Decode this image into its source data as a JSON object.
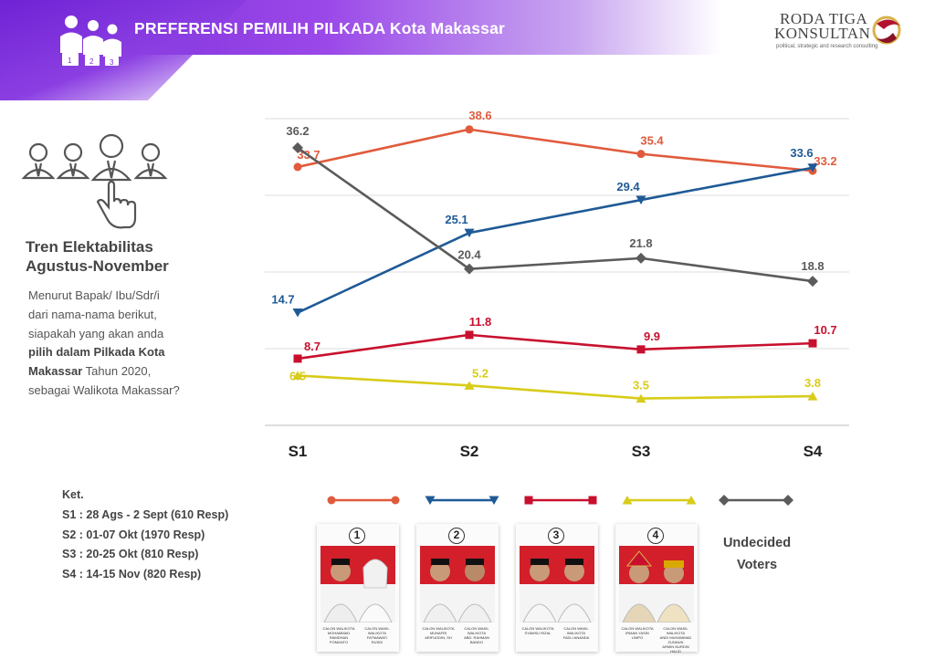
{
  "header": {
    "title": "PREFERENSI PEMILIH PILKADA Kota Makassar"
  },
  "brand": {
    "line1": "RODA TIGA",
    "line2": "KONSULTAN",
    "tagline": "political, strategic and research consulting"
  },
  "sidebar": {
    "trend_title_1": "Tren Elektabilitas",
    "trend_title_2": "Agustus-November",
    "question_1": "Menurut Bapak/ Ibu/Sdr/i",
    "question_2": "dari nama-nama berikut,",
    "question_3": "siapakah yang akan anda",
    "question_4_bold": "pilih dalam Pilkada Kota",
    "question_5_bold": "Makassar",
    "question_5_rest": " Tahun 2020,",
    "question_6": "sebagai Walikota Makassar?"
  },
  "ket": {
    "title": "Ket.",
    "items": [
      "S1 : 28 Ags - 2 Sept (610 Resp)",
      "S2 : 01-07 Okt (1970 Resp)",
      "S3 : 20-25 Okt (810 Resp)",
      "S4 : 14-15 Nov (820 Resp)"
    ]
  },
  "candidates": [
    {
      "number": "1",
      "left_caption": "CALON WALIKOTA\nMOHAMMAD RAMDHAN\nPOMANTO",
      "right_caption": "CALON WAKIL WALIKOTA\nFATMAWATI\nRUSDI"
    },
    {
      "number": "2",
      "left_caption": "CALON WALIKOTA\nMUNAFRI\nARIFUDDIN, SH",
      "right_caption": "CALON WAKIL WALIKOTA\nABD. RAHMAN\nBANDO"
    },
    {
      "number": "3",
      "left_caption": "CALON WALIKOTA\nSYAMSU RIZAL",
      "right_caption": "CALON WAKIL WALIKOTA\nFADLI ANANDA"
    },
    {
      "number": "4",
      "left_caption": "CALON WALIKOTA\nIRMAN YASIN\nLIMPO",
      "right_caption": "CALON WAKIL WALIKOTA\nANDI MUHAMMAD ZUNNUN\nARMIN NURDIN HALID"
    }
  ],
  "undecided_label_1": "Undecided",
  "undecided_label_2": "Voters",
  "chart_data": {
    "type": "line",
    "categories": [
      "S1",
      "S2",
      "S3",
      "S4"
    ],
    "ylim": [
      0,
      40
    ],
    "grid": true,
    "series": [
      {
        "values": [
          33.7,
          38.6,
          35.4,
          33.2
        ],
        "color": "#e05b3c",
        "marker": "circle",
        "labels": [
          "33.7",
          "38.6",
          "35.4",
          "33.2"
        ]
      },
      {
        "values": [
          14.7,
          25.1,
          29.4,
          33.6
        ],
        "color": "#1f5a96",
        "marker": "triangle-down",
        "labels": [
          "14.7",
          "25.1",
          "29.4",
          "33.6"
        ]
      },
      {
        "values": [
          8.7,
          11.8,
          9.9,
          10.7
        ],
        "color": "#c8102e",
        "marker": "square",
        "labels": [
          "8.7",
          "11.8",
          "9.9",
          "10.7"
        ]
      },
      {
        "values": [
          6.5,
          5.2,
          3.5,
          3.8
        ],
        "color": "#d8cc1a",
        "marker": "triangle-up",
        "labels": [
          "6.5",
          "5.2",
          "3.5",
          "3.8"
        ]
      },
      {
        "values": [
          36.2,
          20.4,
          21.8,
          18.8
        ],
        "color": "#5b5b5b",
        "marker": "diamond",
        "labels": [
          "36.2",
          "20.4",
          "21.8",
          "18.8"
        ]
      }
    ]
  }
}
